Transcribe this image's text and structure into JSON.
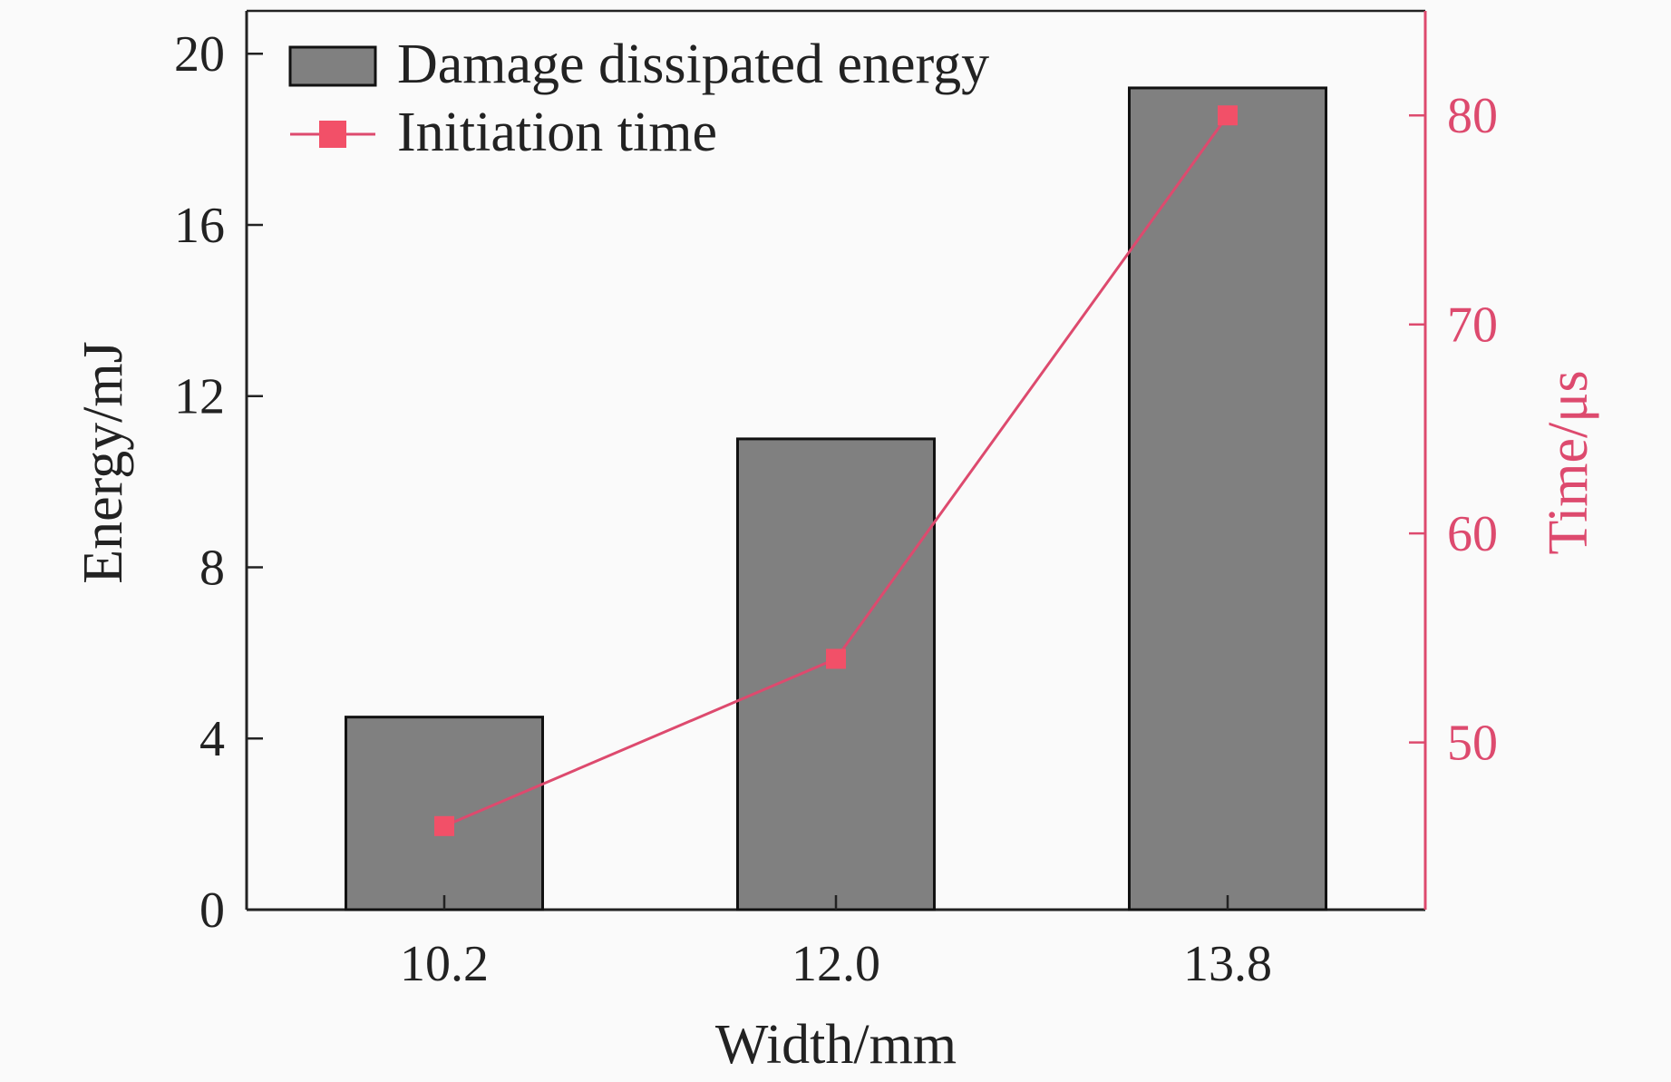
{
  "chart_data": {
    "type": "bar+line",
    "categories": [
      "10.2",
      "12.0",
      "13.8"
    ],
    "xlabel": "Width/mm",
    "series": [
      {
        "name": "Damage dissipated energy",
        "type": "bar",
        "axis": "left",
        "values": [
          4.5,
          11.0,
          19.2
        ]
      },
      {
        "name": "Initiation time",
        "type": "line",
        "marker": "square",
        "axis": "right",
        "values": [
          46,
          54,
          80
        ]
      }
    ],
    "y_left": {
      "label": "Energy/mJ",
      "lim": [
        0,
        21
      ],
      "ticks": [
        0,
        4,
        8,
        12,
        16,
        20
      ]
    },
    "y_right": {
      "label": "Time/μs",
      "lim": [
        42,
        85
      ],
      "ticks": [
        50,
        60,
        70,
        80
      ]
    },
    "legend": {
      "position": "top-left",
      "entries": [
        "Damage dissipated energy",
        "Initiation time"
      ]
    },
    "colors": {
      "bar_fill": "#808080",
      "bar_stroke": "#111111",
      "line": "#dd4a6e",
      "marker": "#f25068",
      "axis": "#222222",
      "right_axis": "#dd4a6e"
    }
  }
}
